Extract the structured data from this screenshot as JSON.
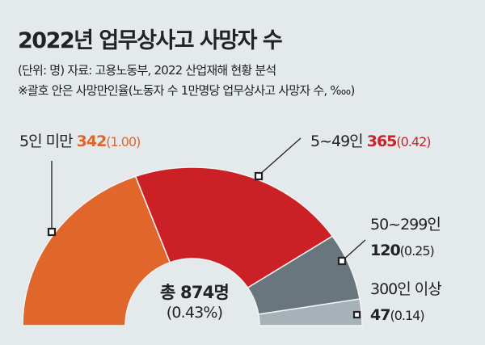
{
  "chart_data": {
    "type": "pie",
    "variant": "semi-donut",
    "title": "2022년 업무상사고 사망자 수",
    "source": "(단위: 명) 자료: 고용노동부, 2022 산업재해 현황 분석",
    "note": "※괄호 안은 사망만인율(노동자 수 1만명당 업무상사고 사망자 수, ‱)",
    "center": {
      "total": "총 874명",
      "rate": "(0.43%)"
    },
    "slices": [
      {
        "name": "5인 미만",
        "value": 342,
        "value_label": "342",
        "rate": "(1.00)",
        "color": "#e0662c",
        "value_color": "#e0662c"
      },
      {
        "name": "5~49인",
        "value": 365,
        "value_label": "365",
        "rate": "(0.42)",
        "color": "#cb2026",
        "value_color": "#c8242a"
      },
      {
        "name": "50~299인",
        "value": 120,
        "value_label": "120",
        "rate": "(0.25)",
        "color": "#69767e",
        "value_color": "#222222"
      },
      {
        "name": "300인 이상",
        "value": 47,
        "value_label": "47",
        "rate": "(0.14)",
        "color": "#a7b1b8",
        "value_color": "#222222"
      }
    ]
  }
}
